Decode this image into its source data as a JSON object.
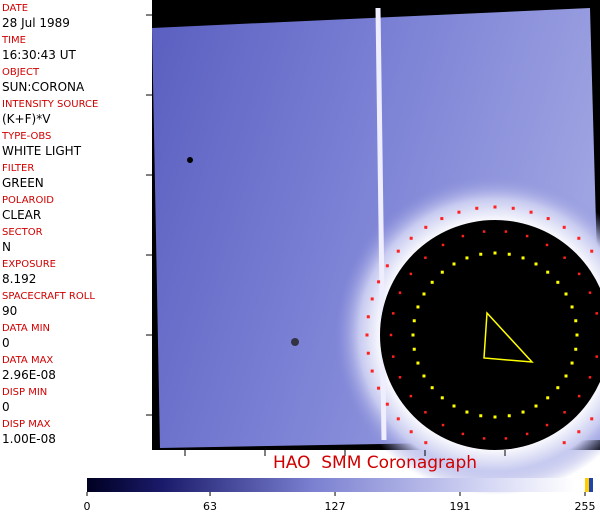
{
  "fields": [
    {
      "label": "DATE",
      "value": "28 Jul 1989"
    },
    {
      "label": "TIME",
      "value": "16:30:43 UT"
    },
    {
      "label": "OBJECT",
      "value": "SUN:CORONA"
    },
    {
      "label": "INTENSITY SOURCE",
      "value": "(K+F)*V"
    },
    {
      "label": "TYPE-OBS",
      "value": "WHITE LIGHT"
    },
    {
      "label": "FILTER",
      "value": "GREEN"
    },
    {
      "label": "POLAROID",
      "value": "CLEAR"
    },
    {
      "label": "SECTOR",
      "value": "N"
    },
    {
      "label": "EXPOSURE",
      "value": "8.192"
    },
    {
      "label": "SPACECRAFT ROLL",
      "value": "90"
    },
    {
      "label": "DATA MIN",
      "value": "0"
    },
    {
      "label": "DATA MAX",
      "value": "2.96E-08"
    },
    {
      "label": "DISP MIN",
      "value": "0"
    },
    {
      "label": "DISP MAX",
      "value": "1.00E-08"
    }
  ],
  "caption": "HAO  SMM Coronagraph",
  "colorbar": {
    "ticks": [
      0,
      63,
      127,
      191,
      255
    ]
  }
}
